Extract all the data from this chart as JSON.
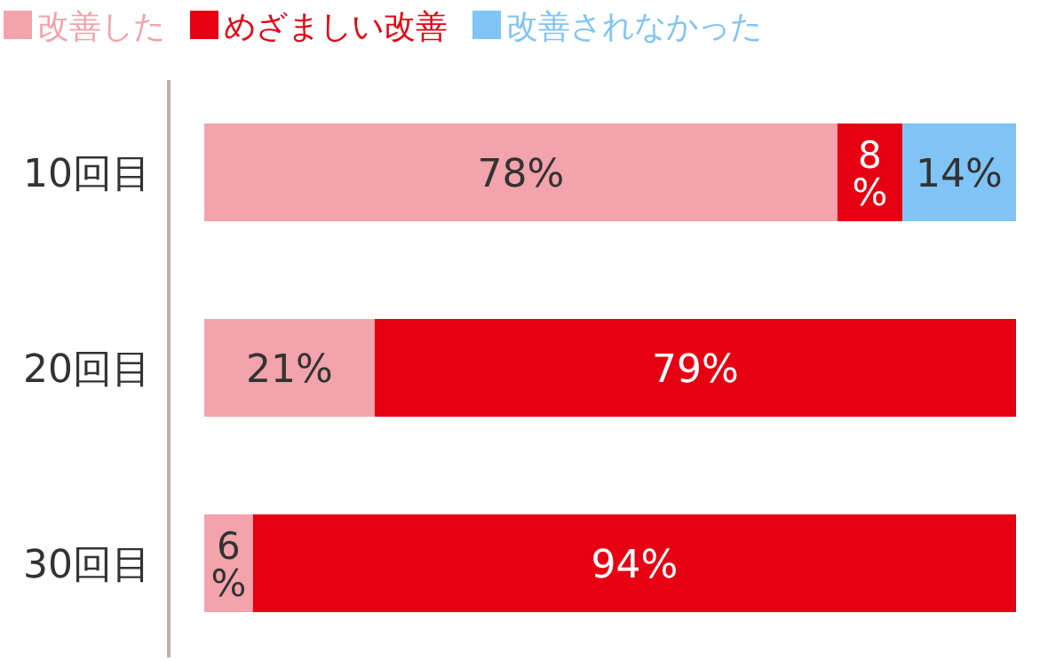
{
  "chart_data": {
    "type": "bar",
    "orientation": "horizontal",
    "stacked": true,
    "legend": "top left",
    "xlim": [
      0,
      100
    ],
    "categories": [
      "10回目",
      "20回目",
      "30回目"
    ],
    "series": [
      {
        "name": "改善した",
        "color": "#f2a3ab",
        "values": [
          78,
          21,
          6
        ],
        "value_labels": [
          "78%",
          "21%",
          "6\n%"
        ]
      },
      {
        "name": "めざましい改善",
        "color": "#e60012",
        "values": [
          8,
          79,
          94
        ],
        "value_labels": [
          "8\n%",
          "79%",
          "94%"
        ]
      },
      {
        "name": "改善されなかった",
        "color": "#80c4f5",
        "values": [
          14,
          null,
          null
        ],
        "value_labels": [
          "14%",
          null,
          null
        ]
      }
    ]
  }
}
